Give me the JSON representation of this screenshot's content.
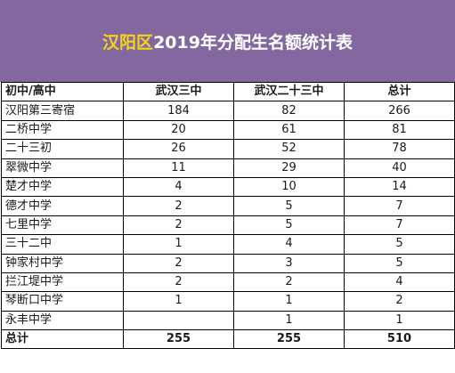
{
  "banner": {
    "title_highlight": "汉阳区",
    "title_rest": "2019年分配生名额统计表"
  },
  "table": {
    "headers": [
      "初中/高中",
      "武汉三中",
      "武汉二十三中",
      "总计"
    ],
    "rows": [
      [
        "汉阳第三寄宿",
        "184",
        "82",
        "266"
      ],
      [
        "二桥中学",
        "20",
        "61",
        "81"
      ],
      [
        "二十三初",
        "26",
        "52",
        "78"
      ],
      [
        "翠微中学",
        "11",
        "29",
        "40"
      ],
      [
        "楚才中学",
        "4",
        "10",
        "14"
      ],
      [
        "德才中学",
        "2",
        "5",
        "7"
      ],
      [
        "七里中学",
        "2",
        "5",
        "7"
      ],
      [
        "三十二中",
        "1",
        "4",
        "5"
      ],
      [
        "钟家村中学",
        "2",
        "3",
        "5"
      ],
      [
        "拦江堤中学",
        "2",
        "2",
        "4"
      ],
      [
        "琴断口中学",
        "1",
        "1",
        "2"
      ],
      [
        "永丰中学",
        "",
        "1",
        "1"
      ]
    ],
    "totals": [
      "总计",
      "255",
      "255",
      "510"
    ]
  }
}
